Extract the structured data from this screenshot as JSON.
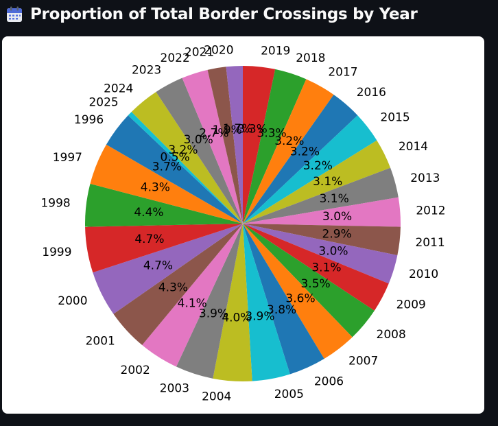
{
  "header": {
    "title": "Proportion of Total Border Crossings by Year",
    "icon": "calendar-icon"
  },
  "chart_data": {
    "type": "pie",
    "title": "",
    "start_angle_deg": 90,
    "direction": "clockwise",
    "slices": [
      {
        "label": "2019",
        "pct": 3.3,
        "pct_label": "3.3%",
        "color": "#d62728"
      },
      {
        "label": "2018",
        "pct": 3.3,
        "pct_label": "3.3%",
        "color": "#2ca02c"
      },
      {
        "label": "2017",
        "pct": 3.2,
        "pct_label": "3.2%",
        "color": "#ff7f0e"
      },
      {
        "label": "2016",
        "pct": 3.2,
        "pct_label": "3.2%",
        "color": "#1f77b4"
      },
      {
        "label": "2015",
        "pct": 3.2,
        "pct_label": "3.2%",
        "color": "#17becf"
      },
      {
        "label": "2014",
        "pct": 3.1,
        "pct_label": "3.1%",
        "color": "#bcbd22"
      },
      {
        "label": "2013",
        "pct": 3.1,
        "pct_label": "3.1%",
        "color": "#7f7f7f"
      },
      {
        "label": "2012",
        "pct": 3.0,
        "pct_label": "3.0%",
        "color": "#e377c2"
      },
      {
        "label": "2011",
        "pct": 2.9,
        "pct_label": "2.9%",
        "color": "#8c564b"
      },
      {
        "label": "2010",
        "pct": 3.0,
        "pct_label": "3.0%",
        "color": "#9467bd"
      },
      {
        "label": "2009",
        "pct": 3.1,
        "pct_label": "3.1%",
        "color": "#d62728"
      },
      {
        "label": "2008",
        "pct": 3.5,
        "pct_label": "3.5%",
        "color": "#2ca02c"
      },
      {
        "label": "2007",
        "pct": 3.6,
        "pct_label": "3.6%",
        "color": "#ff7f0e"
      },
      {
        "label": "2006",
        "pct": 3.8,
        "pct_label": "3.8%",
        "color": "#1f77b4"
      },
      {
        "label": "2005",
        "pct": 3.9,
        "pct_label": "3.9%",
        "color": "#17becf"
      },
      {
        "label": "2004",
        "pct": 4.0,
        "pct_label": "4.0%",
        "color": "#bcbd22"
      },
      {
        "label": "2003",
        "pct": 3.9,
        "pct_label": "3.9%",
        "color": "#7f7f7f"
      },
      {
        "label": "2002",
        "pct": 4.1,
        "pct_label": "4.1%",
        "color": "#e377c2"
      },
      {
        "label": "2001",
        "pct": 4.3,
        "pct_label": "4.3%",
        "color": "#8c564b"
      },
      {
        "label": "2000",
        "pct": 4.7,
        "pct_label": "4.7%",
        "color": "#9467bd"
      },
      {
        "label": "1999",
        "pct": 4.7,
        "pct_label": "4.7%",
        "color": "#d62728"
      },
      {
        "label": "1998",
        "pct": 4.4,
        "pct_label": "4.4%",
        "color": "#2ca02c"
      },
      {
        "label": "1997",
        "pct": 4.3,
        "pct_label": "4.3%",
        "color": "#ff7f0e"
      },
      {
        "label": "1996",
        "pct": 3.7,
        "pct_label": "3.7%",
        "color": "#1f77b4"
      },
      {
        "label": "2025",
        "pct": 0.5,
        "pct_label": "0.5%",
        "color": "#17becf"
      },
      {
        "label": "2024",
        "pct": 3.2,
        "pct_label": "3.2%",
        "color": "#bcbd22"
      },
      {
        "label": "2023",
        "pct": 3.0,
        "pct_label": "3.0%",
        "color": "#7f7f7f"
      },
      {
        "label": "2022",
        "pct": 2.7,
        "pct_label": "2.7%",
        "color": "#e377c2"
      },
      {
        "label": "2021",
        "pct": 1.9,
        "pct_label": "1.9%",
        "color": "#8c564b"
      },
      {
        "label": "2020",
        "pct": 1.7,
        "pct_label": "1.7%",
        "color": "#9467bd"
      }
    ]
  }
}
